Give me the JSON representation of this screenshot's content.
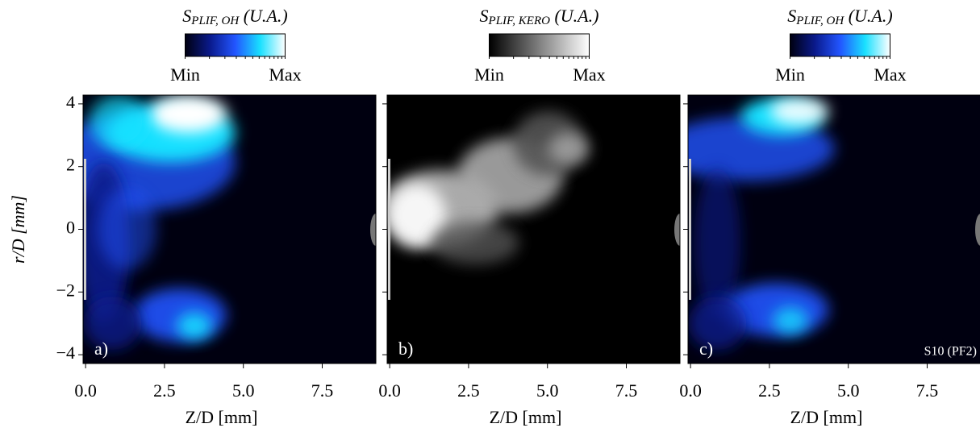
{
  "chart_data": [
    {
      "type": "image",
      "title": {
        "symbol": "S",
        "subscript": "PLIF, OH",
        "unit": "(U.A.)"
      },
      "colorbar_labels": [
        "Min",
        "Max"
      ],
      "colormap": [
        "#000010",
        "#0a1a8c",
        "#2255ff",
        "#19e0ff",
        "#ffffff"
      ],
      "panel_label": "a)",
      "xlabel": "Z/D [mm]",
      "ylabel": "r/D [mm]",
      "xlim": [
        -0.08,
        9.2
      ],
      "ylim": [
        -4.28,
        4.28
      ],
      "xticks": [
        {
          "value": 0,
          "label": "0.0"
        },
        2.5,
        {
          "value": 5,
          "label": "5.0"
        },
        7.5
      ],
      "yticks": [
        {
          "value": -4,
          "label": "−4"
        },
        {
          "value": -2,
          "label": "−2"
        },
        0,
        2,
        4
      ]
    },
    {
      "type": "image",
      "title": {
        "symbol": "S",
        "subscript": "PLIF, KERO",
        "unit": "(U.A.)"
      },
      "colorbar_labels": [
        "Min",
        "Max"
      ],
      "colormap": [
        "#000000",
        "#555555",
        "#aaaaaa",
        "#ffffff"
      ],
      "panel_label": "b)",
      "xlabel": "Z/D [mm]",
      "xlim": [
        -0.08,
        9.2
      ],
      "ylim": [
        -4.28,
        4.28
      ],
      "xticks": [
        {
          "value": 0,
          "label": "0.0"
        },
        2.5,
        {
          "value": 5,
          "label": "5.0"
        },
        7.5
      ]
    },
    {
      "type": "image",
      "title": {
        "symbol": "S",
        "subscript": "PLIF, OH",
        "unit": "(U.A.)"
      },
      "colorbar_labels": [
        "Min",
        "Max"
      ],
      "colormap": [
        "#000010",
        "#0a1a8c",
        "#2255ff",
        "#19e0ff",
        "#ffffff"
      ],
      "panel_label": "c)",
      "annotation": "S10 (PF2)",
      "xlabel": "Z/D [mm]",
      "xlim": [
        -0.08,
        9.2
      ],
      "ylim": [
        -4.28,
        4.28
      ],
      "xticks": [
        {
          "value": 0,
          "label": "0.0"
        },
        2.5,
        {
          "value": 5,
          "label": "5.0"
        },
        7.5
      ]
    }
  ]
}
